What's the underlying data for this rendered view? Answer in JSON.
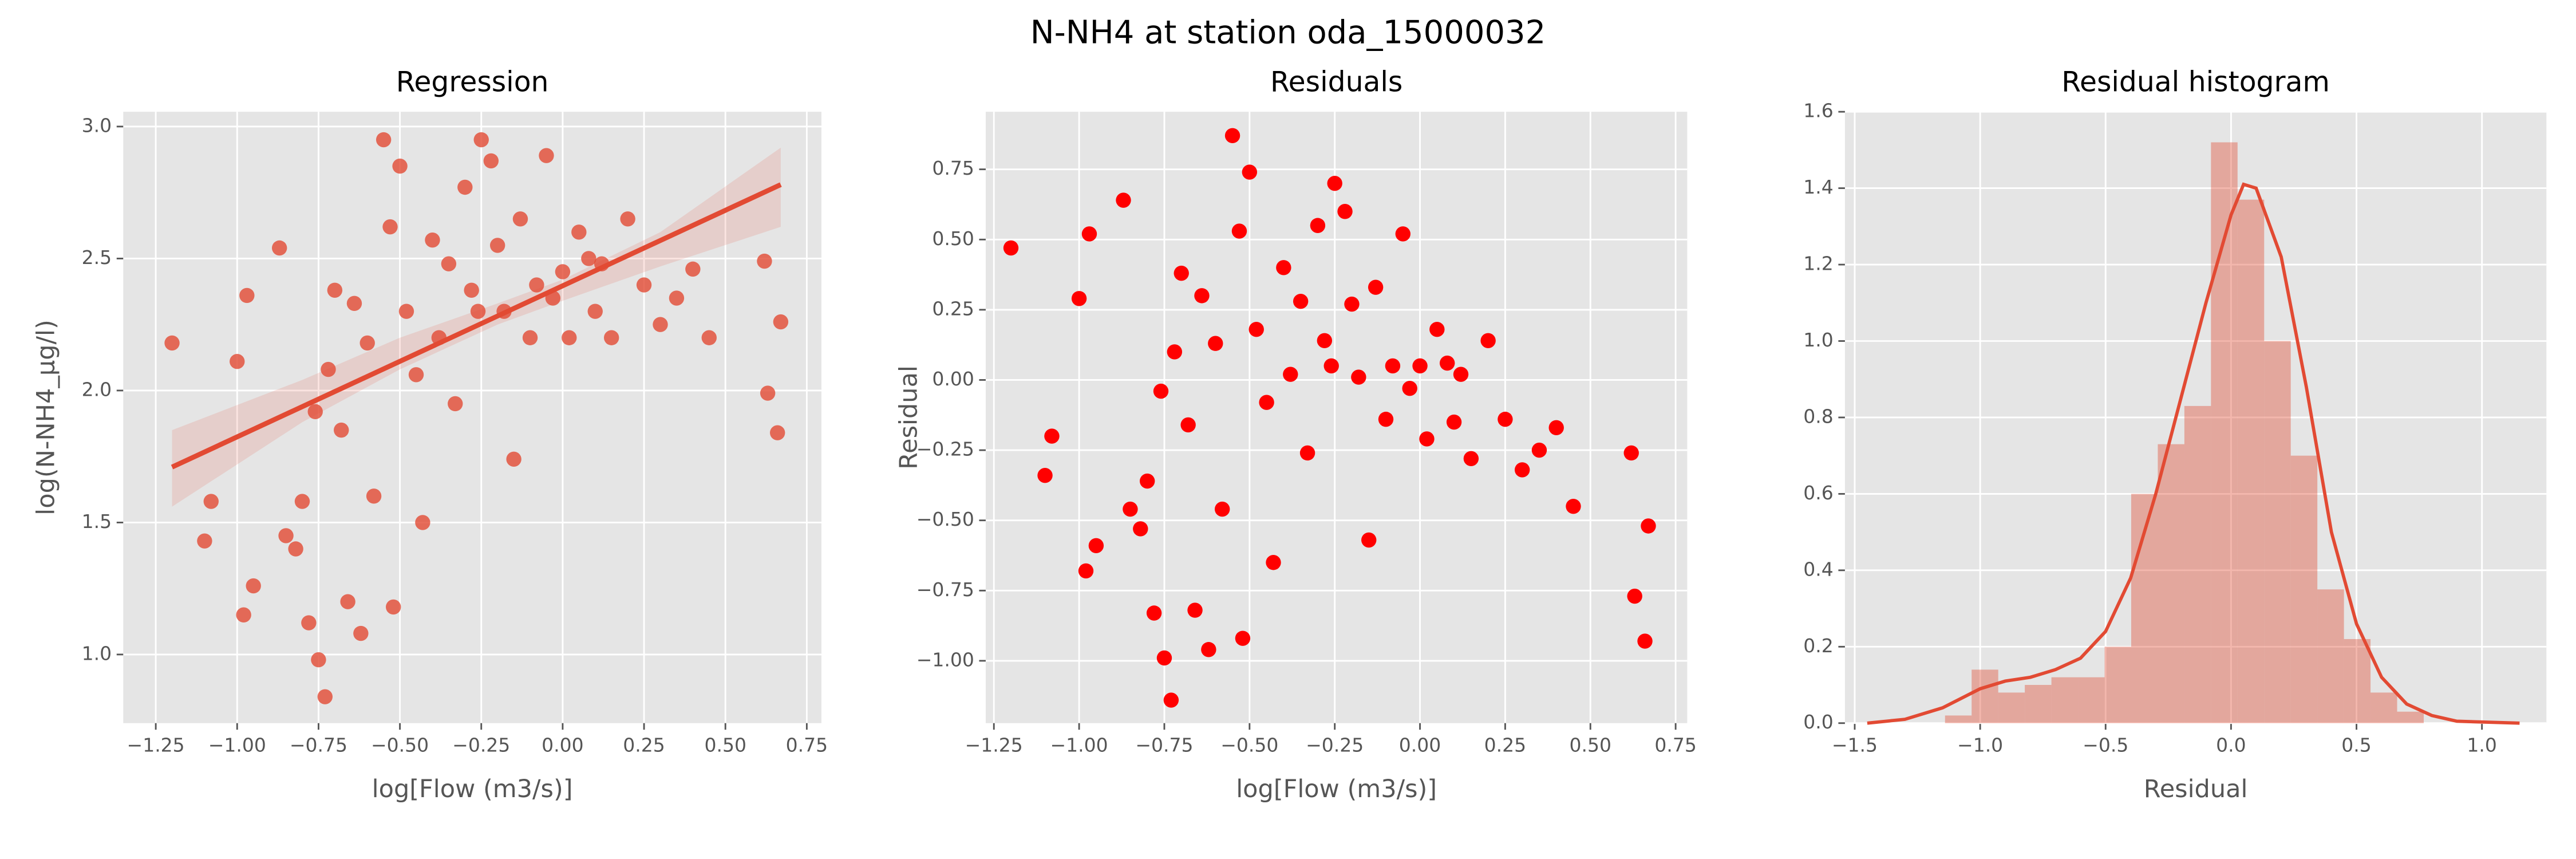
{
  "title": "N-NH4 at station oda_15000032",
  "chart_data": [
    {
      "type": "regplot",
      "title": "Regression",
      "x_label": "log[Flow (m3/s)]",
      "y_label": "log(N-NH4_µg/l)",
      "color": "#e24a33",
      "grid": true,
      "x": [
        -1.2,
        -1.1,
        -1.08,
        -1.0,
        -0.97,
        -0.95,
        -0.98,
        -0.87,
        -0.85,
        -0.82,
        -0.8,
        -0.78,
        -0.76,
        -0.75,
        -0.73,
        -0.72,
        -0.7,
        -0.68,
        -0.66,
        -0.64,
        -0.62,
        -0.6,
        -0.58,
        -0.55,
        -0.53,
        -0.52,
        -0.5,
        -0.48,
        -0.45,
        -0.43,
        -0.4,
        -0.38,
        -0.35,
        -0.33,
        -0.3,
        -0.28,
        -0.26,
        -0.25,
        -0.22,
        -0.2,
        -0.18,
        -0.15,
        -0.13,
        -0.1,
        -0.08,
        -0.05,
        -0.03,
        0.0,
        0.02,
        0.05,
        0.08,
        0.1,
        0.12,
        0.15,
        0.2,
        0.25,
        0.3,
        0.35,
        0.4,
        0.45,
        0.62,
        0.63,
        0.66,
        0.67
      ],
      "y": [
        2.18,
        1.43,
        1.58,
        2.11,
        2.36,
        1.26,
        1.15,
        2.54,
        1.45,
        1.4,
        1.58,
        1.12,
        1.92,
        0.98,
        0.84,
        2.08,
        2.38,
        1.85,
        1.2,
        2.33,
        1.08,
        2.18,
        1.6,
        2.95,
        2.62,
        1.18,
        2.85,
        2.3,
        2.06,
        1.5,
        2.57,
        2.2,
        2.48,
        1.95,
        2.77,
        2.38,
        2.3,
        2.95,
        2.87,
        2.55,
        2.3,
        1.74,
        2.65,
        2.2,
        2.4,
        2.89,
        2.35,
        2.45,
        2.2,
        2.6,
        2.5,
        2.3,
        2.48,
        2.2,
        2.65,
        2.4,
        2.25,
        2.35,
        2.46,
        2.2,
        2.49,
        1.99,
        1.84,
        2.26
      ],
      "fit": {
        "x": [
          -1.2,
          0.67
        ],
        "y": [
          1.71,
          2.78
        ]
      },
      "ci": {
        "x": [
          -1.2,
          -0.8,
          -0.5,
          -0.2,
          0.0,
          0.3,
          0.67
        ],
        "lower": [
          1.56,
          1.88,
          2.08,
          2.25,
          2.34,
          2.47,
          2.62
        ],
        "upper": [
          1.85,
          2.04,
          2.2,
          2.33,
          2.42,
          2.6,
          2.92
        ]
      },
      "xlim": [
        -1.35,
        0.795
      ],
      "ylim": [
        0.74,
        3.056
      ],
      "xticks": [
        {
          "value": -1.25,
          "label": "−1.25"
        },
        {
          "value": -1.0,
          "label": "−1.00"
        },
        {
          "value": -0.75,
          "label": "−0.75"
        },
        {
          "value": -0.5,
          "label": "−0.50"
        },
        {
          "value": -0.25,
          "label": "−0.25"
        },
        {
          "value": 0,
          "label": "0.00"
        },
        0.25,
        {
          "value": 0.5,
          "label": "0.50"
        },
        0.75
      ],
      "yticks": [
        {
          "value": 1,
          "label": "1.0"
        },
        1.5,
        {
          "value": 2,
          "label": "2.0"
        },
        2.5,
        {
          "value": 3,
          "label": "3.0"
        }
      ]
    },
    {
      "type": "scatter",
      "title": "Residuals",
      "x_label": "log[Flow (m3/s)]",
      "y_label": "Residual",
      "color": "#ff0000",
      "grid": true,
      "x": [
        -1.2,
        -1.1,
        -1.08,
        -1.0,
        -0.97,
        -0.95,
        -0.98,
        -0.87,
        -0.85,
        -0.82,
        -0.8,
        -0.78,
        -0.76,
        -0.75,
        -0.73,
        -0.72,
        -0.7,
        -0.68,
        -0.66,
        -0.64,
        -0.62,
        -0.6,
        -0.58,
        -0.55,
        -0.53,
        -0.52,
        -0.5,
        -0.48,
        -0.45,
        -0.43,
        -0.4,
        -0.38,
        -0.35,
        -0.33,
        -0.3,
        -0.28,
        -0.26,
        -0.25,
        -0.22,
        -0.2,
        -0.18,
        -0.15,
        -0.13,
        -0.1,
        -0.08,
        -0.05,
        -0.03,
        0.0,
        0.02,
        0.05,
        0.08,
        0.1,
        0.12,
        0.15,
        0.2,
        0.25,
        0.3,
        0.35,
        0.4,
        0.45,
        0.62,
        0.63,
        0.66,
        0.67
      ],
      "y": [
        0.47,
        -0.34,
        -0.2,
        0.29,
        0.52,
        -0.59,
        -0.68,
        0.64,
        -0.46,
        -0.53,
        -0.36,
        -0.83,
        -0.04,
        -0.99,
        -1.14,
        0.1,
        0.38,
        -0.16,
        -0.82,
        0.3,
        -0.96,
        0.13,
        -0.46,
        0.87,
        0.53,
        -0.92,
        0.74,
        0.18,
        -0.08,
        -0.65,
        0.4,
        0.02,
        0.28,
        -0.26,
        0.55,
        0.14,
        0.05,
        0.7,
        0.6,
        0.27,
        0.01,
        -0.57,
        0.33,
        -0.14,
        0.05,
        0.52,
        -0.03,
        0.05,
        -0.21,
        0.18,
        0.06,
        -0.15,
        0.02,
        -0.28,
        0.14,
        -0.14,
        -0.32,
        -0.25,
        -0.17,
        -0.45,
        -0.26,
        -0.77,
        -0.93,
        -0.52
      ],
      "xlim": [
        -1.274,
        0.784
      ],
      "ylim": [
        -1.222,
        0.955
      ],
      "xticks": [
        {
          "value": -1.25,
          "label": "−1.25"
        },
        {
          "value": -1.0,
          "label": "−1.00"
        },
        {
          "value": -0.75,
          "label": "−0.75"
        },
        {
          "value": -0.5,
          "label": "−0.50"
        },
        {
          "value": -0.25,
          "label": "−0.25"
        },
        {
          "value": 0,
          "label": "0.00"
        },
        0.25,
        {
          "value": 0.5,
          "label": "0.50"
        },
        0.75
      ],
      "yticks": [
        {
          "value": -1.0,
          "label": "−1.00"
        },
        {
          "value": -0.75,
          "label": "−0.75"
        },
        {
          "value": -0.5,
          "label": "−0.50"
        },
        {
          "value": -0.25,
          "label": "−0.25"
        },
        {
          "value": 0,
          "label": "0.00"
        },
        0.25,
        {
          "value": 0.5,
          "label": "0.50"
        },
        0.75
      ]
    },
    {
      "type": "histogram",
      "title": "Residual histogram",
      "x_label": "Residual",
      "color": "#e24a33",
      "grid": true,
      "bins": [
        -1.14,
        -1.034,
        -0.928,
        -0.822,
        -0.716,
        -0.61,
        -0.504,
        -0.398,
        -0.292,
        -0.186,
        -0.08,
        0.026,
        0.132,
        0.238,
        0.344,
        0.45,
        0.556,
        0.662,
        0.768
      ],
      "counts": [
        0.02,
        0.14,
        0.08,
        0.1,
        0.12,
        0.12,
        0.2,
        0.6,
        0.73,
        0.83,
        1.52,
        1.37,
        1.0,
        0.7,
        0.35,
        0.22,
        0.08,
        0.03
      ],
      "kde": {
        "x": [
          -1.45,
          -1.3,
          -1.15,
          -1.0,
          -0.9,
          -0.8,
          -0.7,
          -0.6,
          -0.5,
          -0.4,
          -0.3,
          -0.2,
          -0.1,
          0.0,
          0.05,
          0.1,
          0.2,
          0.3,
          0.4,
          0.5,
          0.6,
          0.7,
          0.8,
          0.9,
          1.15
        ],
        "y": [
          0.0,
          0.01,
          0.04,
          0.09,
          0.11,
          0.12,
          0.14,
          0.17,
          0.24,
          0.38,
          0.6,
          0.85,
          1.1,
          1.33,
          1.41,
          1.4,
          1.22,
          0.88,
          0.5,
          0.26,
          0.12,
          0.05,
          0.02,
          0.005,
          0.0
        ]
      },
      "xlim": [
        -1.539,
        1.257
      ],
      "ylim": [
        0,
        1.6
      ],
      "xticks": [
        {
          "value": -1.5,
          "label": "−1.5"
        },
        {
          "value": -1.0,
          "label": "−1.0"
        },
        {
          "value": -0.5,
          "label": "−0.5"
        },
        {
          "value": 0,
          "label": "0.0"
        },
        0.5,
        {
          "value": 1.0,
          "label": "1.0"
        }
      ],
      "yticks": [
        {
          "value": 0,
          "label": "0.0"
        },
        0.2,
        0.4,
        0.6,
        0.8,
        {
          "value": 1.0,
          "label": "1.0"
        },
        1.2,
        1.4,
        1.6
      ]
    }
  ]
}
